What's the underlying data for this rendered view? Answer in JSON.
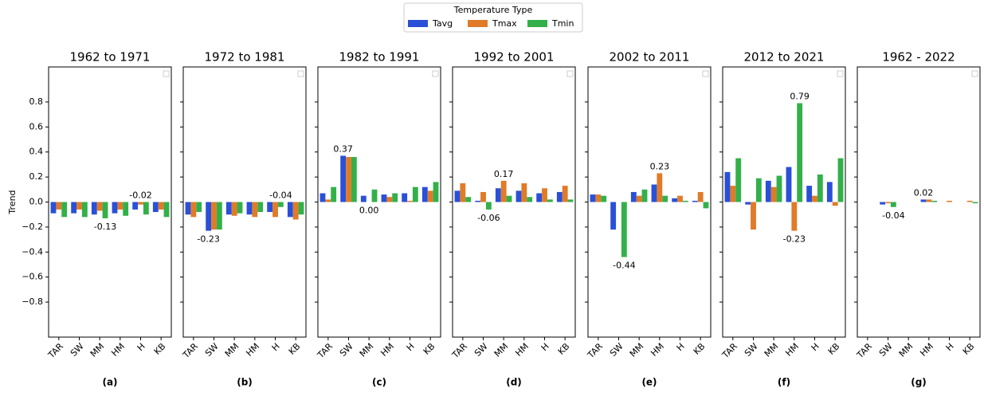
{
  "legend_title": "Temperature Type",
  "chart_data": [
    {
      "type": "bar",
      "title": "1962 to 1971",
      "panel_label": "(a)",
      "ylabel": "Trend",
      "ytick_labels": true,
      "categories": [
        "TAR",
        "SW",
        "MM",
        "HM",
        "H",
        "KB"
      ],
      "series": [
        {
          "name": "Tavg",
          "color": "#2a50d8",
          "values": [
            -0.09,
            -0.09,
            -0.1,
            -0.09,
            -0.06,
            -0.08
          ]
        },
        {
          "name": "Tmax",
          "color": "#e07b28",
          "values": [
            -0.06,
            -0.06,
            -0.07,
            -0.06,
            -0.02,
            -0.06
          ]
        },
        {
          "name": "Tmin",
          "color": "#33b04a",
          "values": [
            -0.12,
            -0.12,
            -0.13,
            -0.11,
            -0.1,
            -0.12
          ]
        }
      ],
      "max_label": "-0.02",
      "min_label": "-0.13",
      "max_color": "#e00000",
      "min_color": "#0000cc",
      "ylim": [
        -1.08,
        1.08
      ],
      "yticks": [
        {
          "value": -0.8,
          "label": "−0.8"
        },
        {
          "value": -0.6,
          "label": "−0.6"
        },
        {
          "value": -0.4,
          "label": "−0.4"
        },
        {
          "value": -0.2,
          "label": "−0.2"
        },
        {
          "value": 0,
          "label": "0.0"
        },
        0.2,
        0.4,
        0.6,
        0.8
      ]
    },
    {
      "type": "bar",
      "title": "1972 to 1981",
      "panel_label": "(b)",
      "ytick_labels": false,
      "categories": [
        "TAR",
        "SW",
        "MM",
        "HM",
        "H",
        "KB"
      ],
      "series": [
        {
          "name": "Tavg",
          "color": "#2a50d8",
          "values": [
            -0.1,
            -0.23,
            -0.1,
            -0.1,
            -0.08,
            -0.12
          ]
        },
        {
          "name": "Tmax",
          "color": "#e07b28",
          "values": [
            -0.12,
            -0.22,
            -0.11,
            -0.12,
            -0.12,
            -0.14
          ]
        },
        {
          "name": "Tmin",
          "color": "#33b04a",
          "values": [
            -0.08,
            -0.22,
            -0.09,
            -0.08,
            -0.04,
            -0.1
          ]
        }
      ],
      "max_label": "-0.04",
      "min_label": "-0.23",
      "max_color": "#e00000",
      "min_color": "#0000cc",
      "ylim": [
        -1.08,
        1.08
      ],
      "yticks": [
        -0.8,
        -0.6,
        -0.4,
        -0.2,
        0,
        0.2,
        0.4,
        0.6,
        0.8
      ]
    },
    {
      "type": "bar",
      "title": "1982 to 1991",
      "panel_label": "(c)",
      "ytick_labels": false,
      "categories": [
        "TAR",
        "SW",
        "MM",
        "HM",
        "H",
        "KB"
      ],
      "series": [
        {
          "name": "Tavg",
          "color": "#2a50d8",
          "values": [
            0.07,
            0.37,
            0.05,
            0.06,
            0.07,
            0.12
          ]
        },
        {
          "name": "Tmax",
          "color": "#e07b28",
          "values": [
            0.02,
            0.36,
            0.0,
            0.04,
            0.01,
            0.09
          ]
        },
        {
          "name": "Tmin",
          "color": "#33b04a",
          "values": [
            0.12,
            0.36,
            0.1,
            0.07,
            0.12,
            0.16
          ]
        }
      ],
      "max_label": "0.37",
      "min_label": "0.00",
      "max_color": "#e00000",
      "min_color": "#0000cc",
      "ylim": [
        -1.08,
        1.08
      ],
      "yticks": [
        -0.8,
        -0.6,
        -0.4,
        -0.2,
        0,
        0.2,
        0.4,
        0.6,
        0.8
      ]
    },
    {
      "type": "bar",
      "title": "1992 to 2001",
      "panel_label": "(d)",
      "ytick_labels": false,
      "categories": [
        "TAR",
        "SW",
        "MM",
        "HM",
        "H",
        "KB"
      ],
      "series": [
        {
          "name": "Tavg",
          "color": "#2a50d8",
          "values": [
            0.09,
            0.01,
            0.11,
            0.09,
            0.07,
            0.08
          ]
        },
        {
          "name": "Tmax",
          "color": "#e07b28",
          "values": [
            0.15,
            0.08,
            0.17,
            0.15,
            0.11,
            0.13
          ]
        },
        {
          "name": "Tmin",
          "color": "#33b04a",
          "values": [
            0.04,
            -0.06,
            0.05,
            0.04,
            0.02,
            0.02
          ]
        }
      ],
      "max_label": "0.17",
      "min_label": "-0.06",
      "max_color": "#e00000",
      "min_color": "#0000cc",
      "ylim": [
        -1.08,
        1.08
      ],
      "yticks": [
        -0.8,
        -0.6,
        -0.4,
        -0.2,
        0,
        0.2,
        0.4,
        0.6,
        0.8
      ]
    },
    {
      "type": "bar",
      "title": "2002 to 2011",
      "panel_label": "(e)",
      "ytick_labels": false,
      "categories": [
        "TAR",
        "SW",
        "MM",
        "HM",
        "H",
        "KB"
      ],
      "series": [
        {
          "name": "Tavg",
          "color": "#2a50d8",
          "values": [
            0.06,
            -0.22,
            0.08,
            0.14,
            0.03,
            0.01
          ]
        },
        {
          "name": "Tmax",
          "color": "#e07b28",
          "values": [
            0.06,
            0.0,
            0.05,
            0.23,
            0.05,
            0.08
          ]
        },
        {
          "name": "Tmin",
          "color": "#33b04a",
          "values": [
            0.05,
            -0.44,
            0.1,
            0.05,
            0.01,
            -0.05
          ]
        }
      ],
      "max_label": "0.23",
      "min_label": "-0.44",
      "max_color": "#e00000",
      "min_color": "#0000cc",
      "ylim": [
        -1.08,
        1.08
      ],
      "yticks": [
        -0.8,
        -0.6,
        -0.4,
        -0.2,
        0,
        0.2,
        0.4,
        0.6,
        0.8
      ]
    },
    {
      "type": "bar",
      "title": "2012 to 2021",
      "panel_label": "(f)",
      "ytick_labels": false,
      "categories": [
        "TAR",
        "SW",
        "MM",
        "HM",
        "H",
        "KB"
      ],
      "series": [
        {
          "name": "Tavg",
          "color": "#2a50d8",
          "values": [
            0.24,
            -0.02,
            0.17,
            0.28,
            0.13,
            0.16
          ]
        },
        {
          "name": "Tmax",
          "color": "#e07b28",
          "values": [
            0.13,
            -0.22,
            0.12,
            -0.23,
            0.05,
            -0.03
          ]
        },
        {
          "name": "Tmin",
          "color": "#33b04a",
          "values": [
            0.35,
            0.19,
            0.21,
            0.79,
            0.22,
            0.35
          ]
        }
      ],
      "max_label": "0.79",
      "min_label": "-0.23",
      "max_color": "#e00000",
      "min_color": "#0000cc",
      "ylim": [
        -1.08,
        1.08
      ],
      "yticks": [
        -0.8,
        -0.6,
        -0.4,
        -0.2,
        0,
        0.2,
        0.4,
        0.6,
        0.8
      ]
    },
    {
      "type": "bar",
      "title": "1962 - 2022",
      "panel_label": "(g)",
      "ytick_labels": false,
      "categories": [
        "TAR",
        "SW",
        "MM",
        "HM",
        "H",
        "KB"
      ],
      "series": [
        {
          "name": "Tavg",
          "color": "#2a50d8",
          "values": [
            0.0,
            -0.02,
            0.0,
            0.02,
            0.0,
            0.0
          ]
        },
        {
          "name": "Tmax",
          "color": "#e07b28",
          "values": [
            0.0,
            -0.01,
            0.0,
            0.02,
            0.01,
            0.01
          ]
        },
        {
          "name": "Tmin",
          "color": "#33b04a",
          "values": [
            0.0,
            -0.04,
            0.0,
            0.01,
            0.0,
            -0.01
          ]
        }
      ],
      "max_label": "0.02",
      "min_label": "-0.04",
      "max_color": "#e00000",
      "min_color": "#0000cc",
      "ylim": [
        -1.08,
        1.08
      ],
      "yticks": [
        -0.8,
        -0.6,
        -0.4,
        -0.2,
        0,
        0.2,
        0.4,
        0.6,
        0.8
      ]
    }
  ]
}
